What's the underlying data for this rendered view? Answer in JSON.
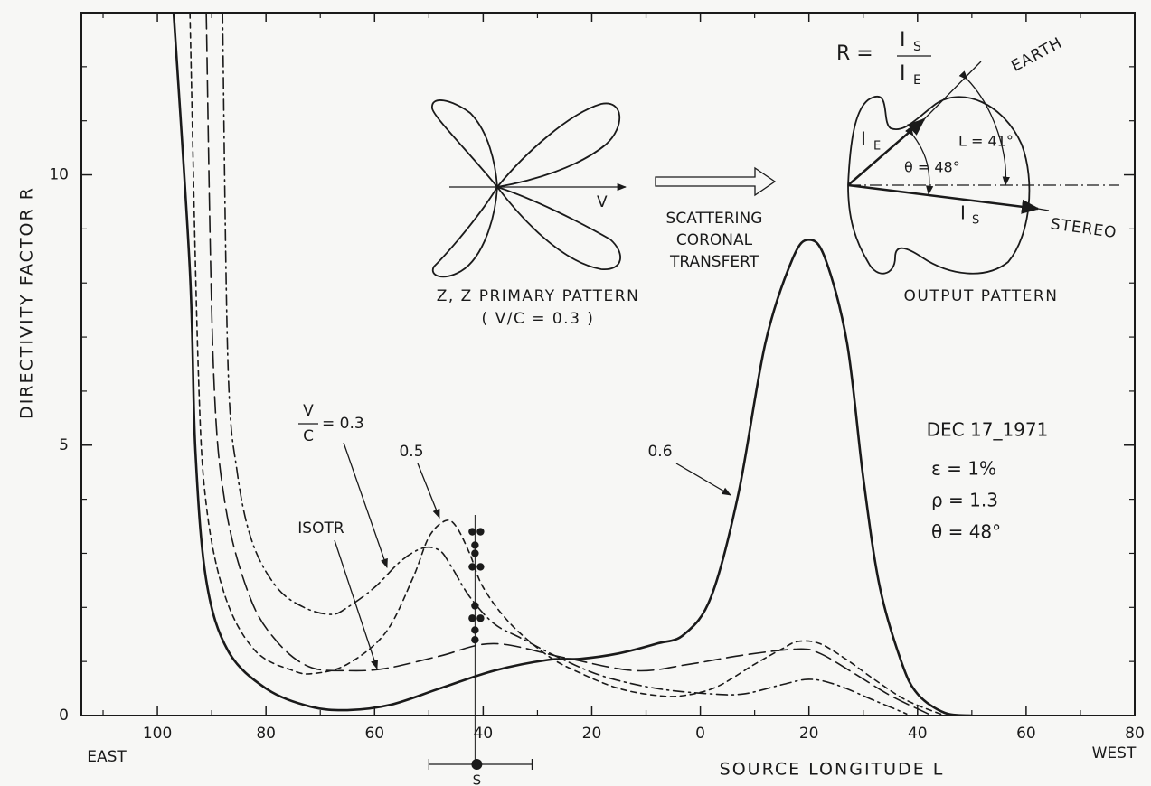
{
  "chart_data": {
    "type": "line",
    "y_label": "DIRECTIVITY FACTOR R",
    "x_label": "SOURCE LONGITUDE L",
    "x_left_label": "EAST",
    "x_right_label": "WEST",
    "xlim": [
      -114,
      80
    ],
    "ylim": [
      0,
      13
    ],
    "xticks": [
      {
        "value": -100,
        "label": "100"
      },
      {
        "value": -80,
        "label": "80"
      },
      {
        "value": -60,
        "label": "60"
      },
      {
        "value": -40,
        "label": "40"
      },
      {
        "value": -20,
        "label": "20"
      },
      0,
      20,
      40,
      60,
      80
    ],
    "x_minor_ticks": [
      -110,
      -90,
      -70,
      -50,
      -30,
      -10,
      10,
      30,
      50,
      70
    ],
    "yticks": [
      0,
      5,
      10
    ],
    "y_minor_ticks": [
      1,
      2,
      3,
      4,
      6,
      7,
      8,
      9,
      11,
      12
    ],
    "series": [
      {
        "style": "solid",
        "color": "#1a1a1a",
        "x": [
          -97,
          -94,
          -93,
          -91,
          -87,
          -80,
          -72,
          -65,
          -57,
          -48,
          -38,
          -28,
          -22,
          -15,
          -8,
          -3,
          2,
          7,
          12,
          17,
          20,
          23,
          27,
          30,
          33,
          37,
          40,
          45,
          50
        ],
        "values": [
          13,
          8.2,
          4.9,
          2.5,
          1.2,
          0.5,
          0.17,
          0.1,
          0.2,
          0.5,
          0.83,
          1.03,
          1.05,
          1.15,
          1.33,
          1.5,
          2.2,
          4.1,
          6.9,
          8.45,
          8.8,
          8.45,
          6.9,
          4.4,
          2.4,
          1.0,
          0.4,
          0.05,
          0
        ]
      },
      {
        "style": "short-dash",
        "color": "#1a1a1a",
        "x": [
          -94,
          -92.5,
          -91,
          -87.5,
          -82,
          -75,
          -71,
          -65,
          -58,
          -53,
          -50,
          -47,
          -45,
          -42.5,
          -40,
          -35,
          -28,
          -22,
          -15,
          -8,
          -3,
          3,
          10,
          15,
          18,
          22,
          27,
          32,
          38,
          45
        ],
        "values": [
          13,
          6.5,
          3.9,
          2.2,
          1.2,
          0.83,
          0.78,
          0.95,
          1.53,
          2.53,
          3.3,
          3.6,
          3.5,
          3.0,
          2.37,
          1.7,
          1.1,
          0.78,
          0.5,
          0.37,
          0.37,
          0.53,
          0.95,
          1.23,
          1.37,
          1.33,
          1.03,
          0.67,
          0.28,
          0
        ]
      },
      {
        "style": "long-dash",
        "color": "#1a1a1a",
        "x": [
          -91,
          -89.7,
          -87.5,
          -83,
          -78,
          -72,
          -65,
          -58,
          -48,
          -38,
          -25,
          -12,
          -2,
          8,
          18,
          22,
          28,
          35,
          42
        ],
        "values": [
          13,
          6.5,
          3.9,
          2.2,
          1.37,
          0.9,
          0.83,
          0.87,
          1.1,
          1.33,
          1.07,
          0.83,
          0.95,
          1.12,
          1.23,
          1.15,
          0.8,
          0.37,
          0.03
        ]
      },
      {
        "style": "dash-dot",
        "color": "#1a1a1a",
        "x": [
          -88,
          -87,
          -85.3,
          -82.5,
          -78,
          -73,
          -68,
          -65,
          -60,
          -55,
          -51,
          -48,
          -46,
          -42.5,
          -38,
          -33,
          -26,
          -18,
          -8,
          2,
          8,
          15,
          20,
          25,
          32,
          38
        ],
        "values": [
          13,
          6.5,
          4.5,
          3.2,
          2.37,
          2.0,
          1.87,
          2.0,
          2.37,
          2.87,
          3.1,
          3.05,
          2.78,
          2.2,
          1.7,
          1.43,
          1.07,
          0.73,
          0.5,
          0.4,
          0.4,
          0.57,
          0.67,
          0.57,
          0.28,
          0.03
        ]
      }
    ],
    "points": {
      "x": [
        -42,
        -40.5,
        -41.5,
        -41.5,
        -42,
        -40.5,
        -41.5,
        -42,
        -40.5,
        -41.5,
        -41.5
      ],
      "y": [
        3.4,
        3.4,
        3.15,
        3.0,
        2.75,
        2.75,
        2.03,
        1.8,
        1.8,
        1.58,
        1.4
      ]
    },
    "s_marker": {
      "label": "S",
      "x": -41.5,
      "range": [
        -50,
        -31
      ]
    },
    "annotations": [
      "V",
      "C",
      "= 0.3",
      "0.5",
      "ISOTR",
      "0.6"
    ],
    "info": [
      "DEC 17_1971",
      "ε = 1%",
      "ρ = 1.3",
      "θ = 48°"
    ],
    "inset": {
      "primary_label": "Z, Z PRIMARY PATTERN",
      "primary_sub": "( V/C = 0.3 )",
      "v": "V",
      "transfer": [
        "SCATTERING",
        "CORONAL",
        "TRANSFERT"
      ],
      "output_label": "OUTPUT PATTERN",
      "formula": {
        "r": "R =",
        "num": "I",
        "num_sub": "S",
        "den": "I",
        "den_sub": "E"
      },
      "earth": "EARTH",
      "stereo": "STEREO",
      "l_angle": "L = 41°",
      "theta": "θ = 48°",
      "ie": "I",
      "ie_sub": "E",
      "is": "I",
      "is_sub": "S"
    }
  }
}
